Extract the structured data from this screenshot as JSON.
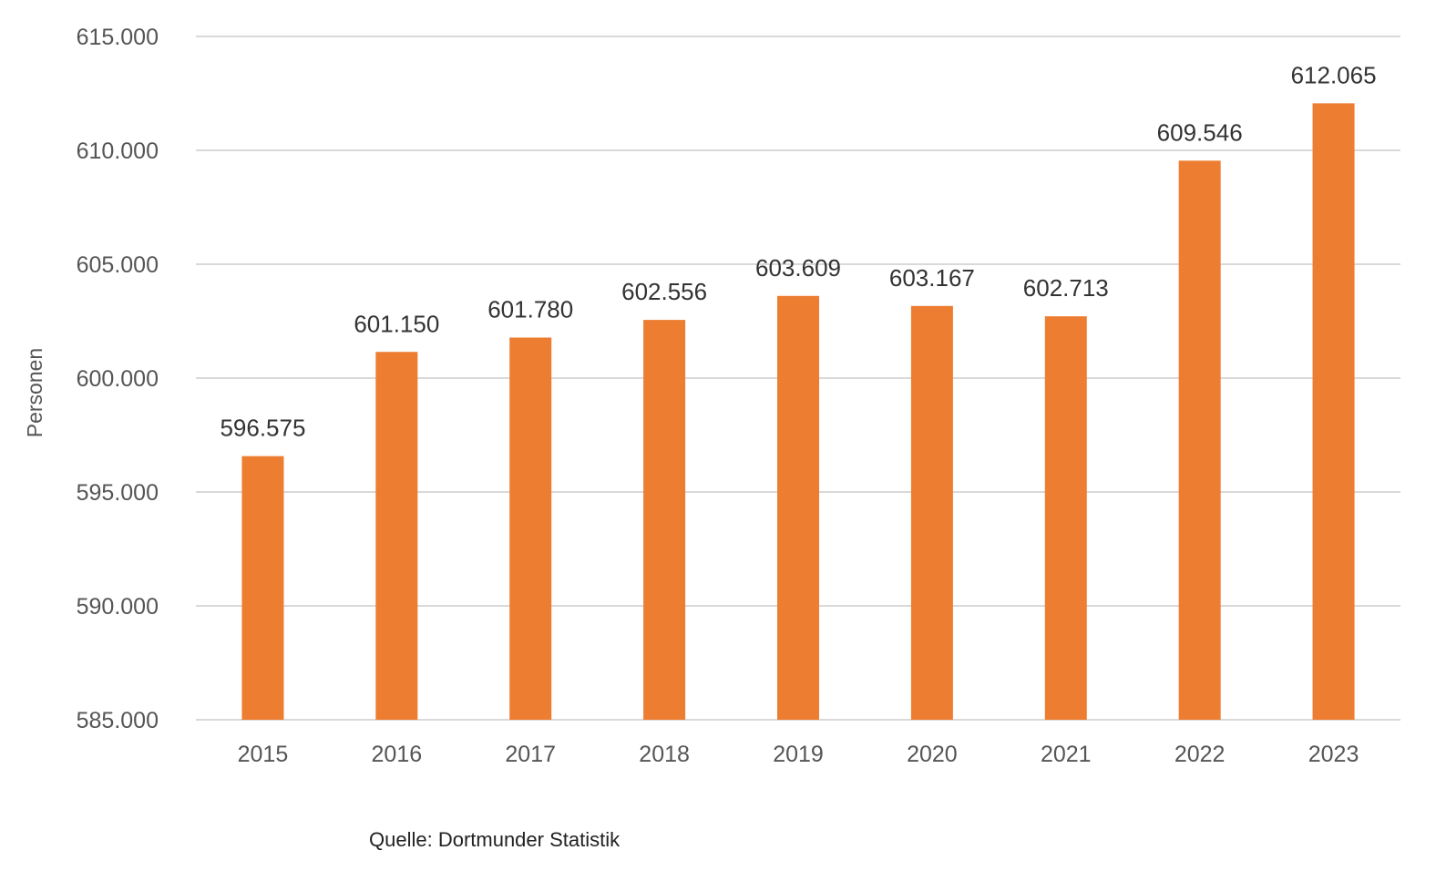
{
  "chart_data": {
    "type": "bar",
    "categories": [
      "2015",
      "2016",
      "2017",
      "2018",
      "2019",
      "2020",
      "2021",
      "2022",
      "2023"
    ],
    "series": [
      {
        "values": [
          596575,
          601150,
          601780,
          602556,
          603609,
          603167,
          602713,
          609546,
          612065
        ],
        "data_labels": [
          "596.575",
          "601.150",
          "601.780",
          "602.556",
          "603.609",
          "603.167",
          "602.713",
          "609.546",
          "612.065"
        ],
        "color": "#ED7D31"
      }
    ],
    "ylabel": "Personen",
    "xlabel": "",
    "ylim": [
      585000,
      615000
    ],
    "yticks": [
      585000,
      590000,
      595000,
      600000,
      605000,
      610000,
      615000
    ],
    "ytick_labels": [
      "585.000",
      "590.000",
      "595.000",
      "600.000",
      "605.000",
      "610.000",
      "615.000"
    ],
    "grid": true,
    "gridline_color": "#D9D9D9",
    "legend": "none",
    "source": "Quelle: Dortmunder Statistik"
  }
}
